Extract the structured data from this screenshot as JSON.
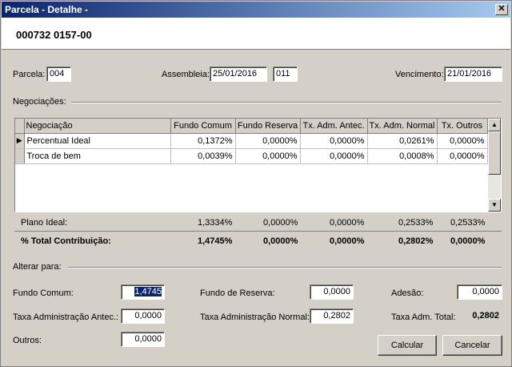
{
  "window": {
    "title": "Parcela - Detalhe -"
  },
  "header": {
    "code": "000732 0157-00"
  },
  "top": {
    "parcela_label": "Parcela:",
    "parcela_value": "004",
    "assembleia_label": "Assembleia:",
    "assembleia_date": "25/01/2016",
    "assembleia_num": "011",
    "vencimento_label": "Vencimento:",
    "vencimento_value": "21/01/2016"
  },
  "negociacoes": {
    "label": "Negociações:",
    "columns": [
      "Negociação",
      "Fundo Comum",
      "Fundo Reserva",
      "Tx. Adm. Antec.",
      "Tx. Adm. Normal",
      "Tx. Outros"
    ],
    "rows": [
      [
        "Percentual Ideal",
        "0,1372%",
        "0,0000%",
        "0,0000%",
        "0,0261%",
        "0,0000%"
      ],
      [
        "Troca de bem",
        "0,0039%",
        "0,0000%",
        "0,0000%",
        "0,0008%",
        "0,0000%"
      ]
    ]
  },
  "plano_ideal": {
    "label": "Plano Ideal:",
    "values": [
      "1,3334%",
      "0,0000%",
      "0,0000%",
      "0,2533%",
      "0,2533%"
    ]
  },
  "total": {
    "label": "% Total Contribuição:",
    "values": [
      "1,4745%",
      "0,0000%",
      "0,0000%",
      "0,2802%",
      "0,0000%"
    ]
  },
  "alterar": {
    "label": "Alterar para:",
    "fundo_comum_label": "Fundo Comum:",
    "fundo_comum_value": "1,4745",
    "fundo_reserva_label": "Fundo de Reserva:",
    "fundo_reserva_value": "0,0000",
    "adesao_label": "Adesão:",
    "adesao_value": "0,0000",
    "taxa_antec_label": "Taxa Administração Antec.:",
    "taxa_antec_value": "0,0000",
    "taxa_normal_label": "Taxa Administração Normal:",
    "taxa_normal_value": "0,2802",
    "taxa_total_label": "Taxa Adm. Total:",
    "taxa_total_value": "0,2802",
    "outros_label": "Outros:",
    "outros_value": "0,0000"
  },
  "buttons": {
    "calcular": "Calcular",
    "cancelar": "Cancelar"
  },
  "icons": {
    "close": "close-icon",
    "row_pointer": "row-pointer-icon"
  }
}
